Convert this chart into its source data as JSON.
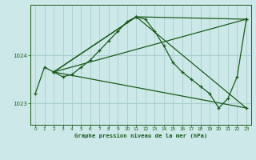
{
  "title": "Graphe pression niveau de la mer (hPa)",
  "bg_color": "#cce8e8",
  "plot_bg_color": "#cce8e8",
  "line_color": "#1a5c1a",
  "grid_color": "#aacece",
  "axis_color": "#1a5c1a",
  "tick_label_color": "#1a5c1a",
  "xlim": [
    -0.5,
    23.5
  ],
  "ylim": [
    1022.55,
    1025.05
  ],
  "yticks": [
    1023,
    1024
  ],
  "xticks": [
    0,
    1,
    2,
    3,
    4,
    5,
    6,
    7,
    8,
    9,
    10,
    11,
    12,
    13,
    14,
    15,
    16,
    17,
    18,
    19,
    20,
    21,
    22,
    23
  ],
  "main_x": [
    0,
    1,
    2,
    3,
    4,
    5,
    6,
    7,
    8,
    9,
    10,
    11,
    12,
    13,
    14,
    15,
    16,
    17,
    18,
    19,
    20,
    21,
    22,
    23
  ],
  "main_y": [
    1023.2,
    1023.75,
    1023.65,
    1023.55,
    1023.6,
    1023.75,
    1023.9,
    1024.1,
    1024.3,
    1024.5,
    1024.7,
    1024.8,
    1024.75,
    1024.5,
    1024.2,
    1023.85,
    1023.65,
    1023.5,
    1023.35,
    1023.2,
    1022.9,
    1023.1,
    1023.55,
    1024.75
  ],
  "line2_x": [
    2,
    23
  ],
  "line2_y": [
    1023.65,
    1024.75
  ],
  "line3_x": [
    2,
    23
  ],
  "line3_y": [
    1023.65,
    1022.9
  ],
  "line4_x": [
    2,
    11,
    23
  ],
  "line4_y": [
    1023.65,
    1024.8,
    1024.75
  ],
  "line5_x": [
    2,
    11,
    23
  ],
  "line5_y": [
    1023.65,
    1024.8,
    1022.9
  ]
}
